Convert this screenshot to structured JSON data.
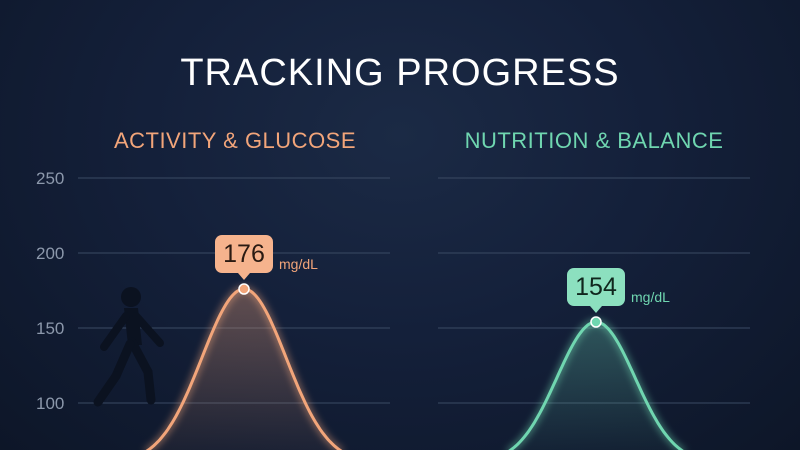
{
  "title": "TRACKING PROGRESS",
  "colors": {
    "left_accent": "#f2a57a",
    "right_accent": "#6fd6b0"
  },
  "icons": {
    "left_panel": "walking-person-icon"
  },
  "chart_data": [
    {
      "type": "line",
      "title": "ACTIVITY & GLUCOSE",
      "ylim": [
        100,
        250
      ],
      "yticks": [
        250,
        200,
        150,
        100
      ],
      "grid": true,
      "series": [
        {
          "peak_value": 176,
          "unit": "mg/dL",
          "color": "#f2a57a"
        }
      ]
    },
    {
      "type": "line",
      "title": "NUTRITION & BALANCE",
      "ylim": [
        100,
        250
      ],
      "yticks": [],
      "grid": true,
      "series": [
        {
          "peak_value": 154,
          "unit": "mg/dL",
          "color": "#6fd6b0"
        }
      ]
    }
  ]
}
